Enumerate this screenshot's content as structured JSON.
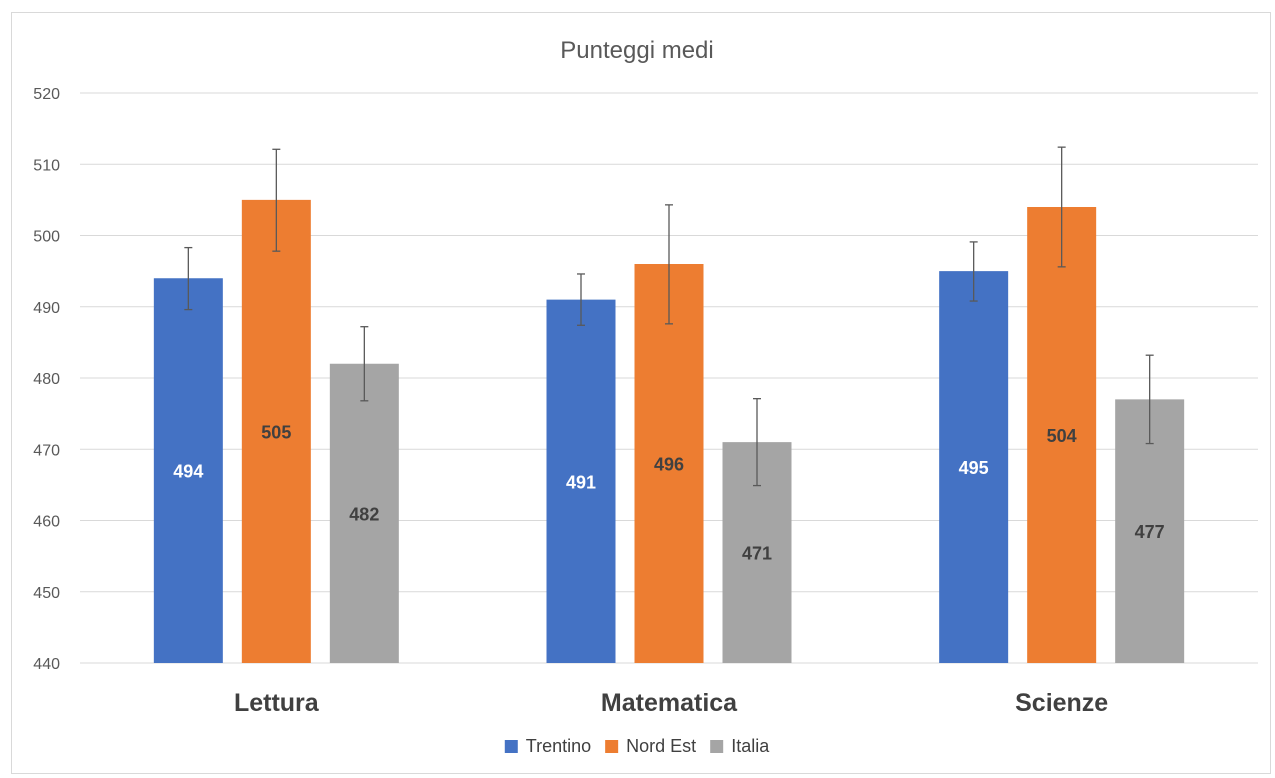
{
  "chart_data": {
    "type": "bar",
    "title": "Punteggi medi",
    "categories": [
      "Lettura",
      "Matematica",
      "Scienze"
    ],
    "series": [
      {
        "name": "Trentino",
        "color": "#4472c4",
        "label_color": "#ffffff",
        "values": [
          494,
          491,
          495
        ],
        "error_low": [
          489.6,
          487.4,
          490.8
        ],
        "error_high": [
          498.3,
          494.6,
          499.1
        ]
      },
      {
        "name": "Nord Est",
        "color": "#ed7d31",
        "label_color": "#404040",
        "values": [
          505,
          496,
          504
        ],
        "error_low": [
          497.8,
          487.6,
          495.6
        ],
        "error_high": [
          512.1,
          504.3,
          512.4
        ]
      },
      {
        "name": "Italia",
        "color": "#a5a5a5",
        "label_color": "#404040",
        "values": [
          482,
          471,
          477
        ],
        "error_low": [
          476.8,
          464.9,
          470.8
        ],
        "error_high": [
          487.2,
          477.1,
          483.2
        ]
      }
    ],
    "yticks": [
      "440",
      "450",
      "460",
      "470",
      "480",
      "490",
      "500",
      "510",
      "520"
    ],
    "ylim": [
      440,
      520
    ],
    "grid": true,
    "legend_position": "bottom",
    "xlabel": "",
    "ylabel": ""
  }
}
